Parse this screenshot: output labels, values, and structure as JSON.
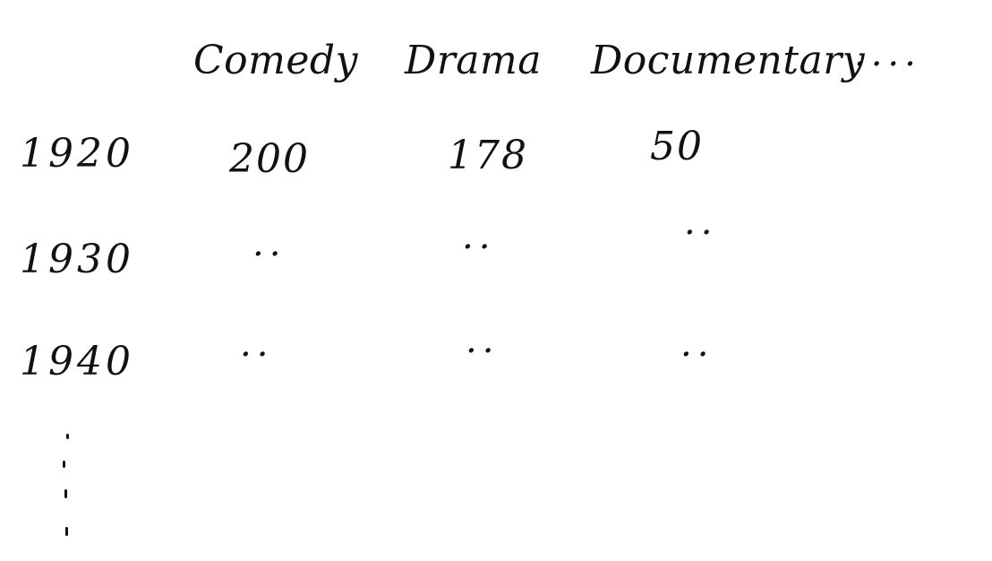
{
  "table": {
    "columns": [
      "Comedy",
      "Drama",
      "Documentary",
      "...."
    ],
    "rows": [
      {
        "label": "1920",
        "cells": [
          "200",
          "178",
          "50"
        ]
      },
      {
        "label": "1930",
        "cells": [
          "..",
          "..",
          ".."
        ]
      },
      {
        "label": "1940",
        "cells": [
          "..",
          "..",
          ".."
        ]
      }
    ],
    "more_rows": "⋮"
  }
}
